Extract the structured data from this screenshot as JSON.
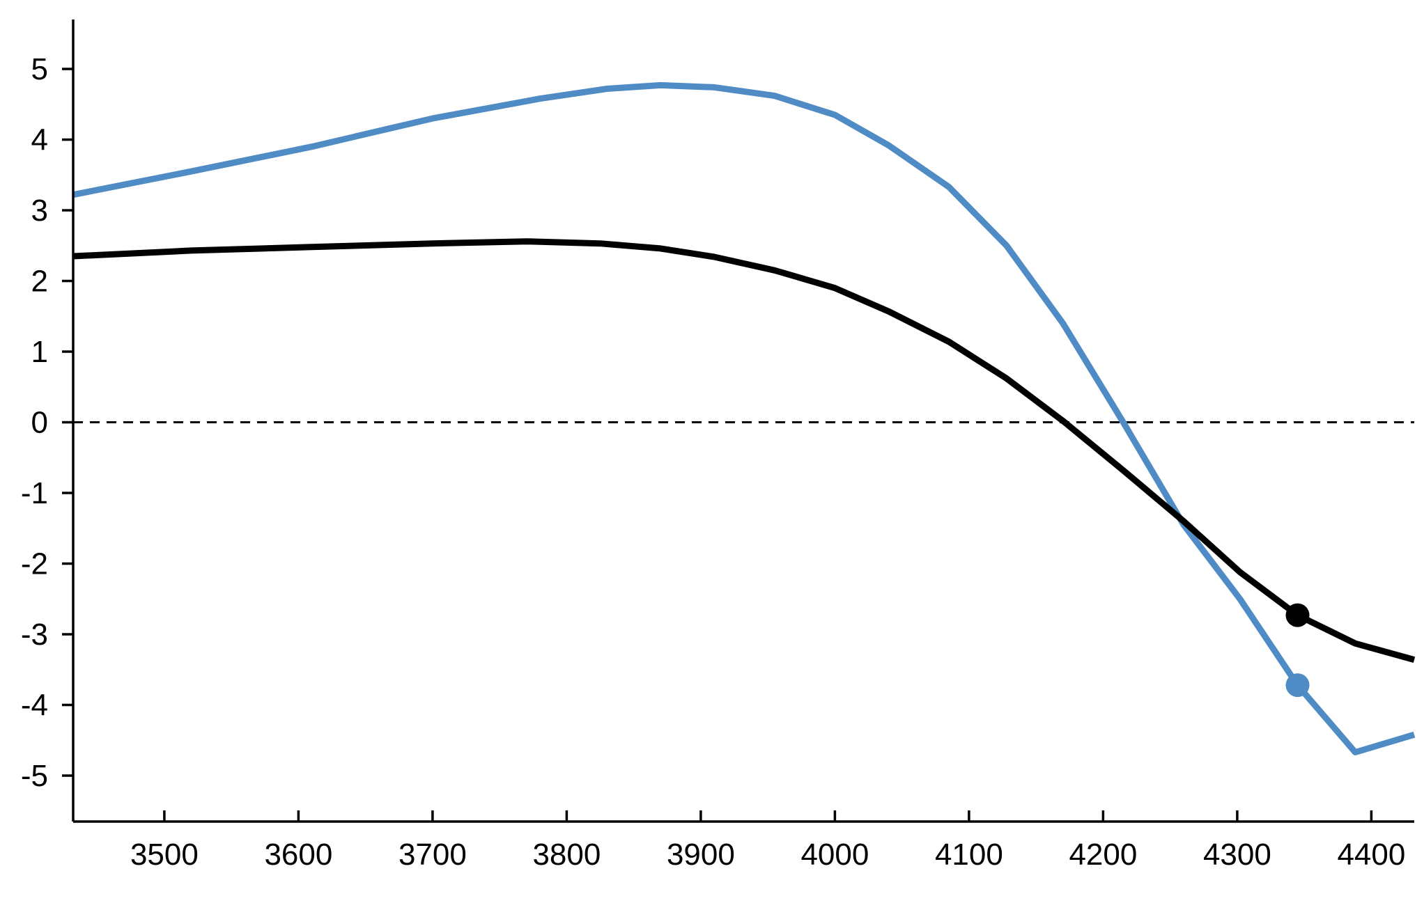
{
  "chart_data": {
    "type": "line",
    "title": "",
    "xlabel": "",
    "ylabel": "",
    "xlim": [
      3432,
      4432
    ],
    "ylim": [
      -5.65,
      5.7
    ],
    "x_ticks": [
      3500,
      3600,
      3700,
      3800,
      3900,
      4000,
      4100,
      4200,
      4300,
      4400
    ],
    "y_ticks": [
      -5,
      -4,
      -3,
      -2,
      -1,
      0,
      1,
      2,
      3,
      4,
      5
    ],
    "x_tick_labels": [
      "3500",
      "3600",
      "3700",
      "3800",
      "3900",
      "4000",
      "4100",
      "4200",
      "4300",
      "4400"
    ],
    "y_tick_labels": [
      "-5",
      "-4",
      "-3",
      "-2",
      "-1",
      "0",
      "1",
      "2",
      "3",
      "4",
      "5"
    ],
    "reference_line": {
      "y": 0,
      "style": "dashed"
    },
    "grid": false,
    "legend": "none",
    "series": [
      {
        "color": "#4f8bc4",
        "points": [
          [
            3432,
            3.22
          ],
          [
            3520,
            3.55
          ],
          [
            3610,
            3.9
          ],
          [
            3700,
            4.3
          ],
          [
            3780,
            4.58
          ],
          [
            3830,
            4.72
          ],
          [
            3870,
            4.77
          ],
          [
            3910,
            4.74
          ],
          [
            3955,
            4.62
          ],
          [
            4000,
            4.35
          ],
          [
            4040,
            3.92
          ],
          [
            4085,
            3.33
          ],
          [
            4128,
            2.5
          ],
          [
            4170,
            1.4
          ],
          [
            4215,
            0.0
          ],
          [
            4260,
            -1.45
          ],
          [
            4302,
            -2.5
          ],
          [
            4345,
            -3.72
          ],
          [
            4388,
            -4.67
          ],
          [
            4432,
            -4.42
          ]
        ],
        "markers": [
          [
            4345,
            -3.72
          ]
        ]
      },
      {
        "color": "#000000",
        "points": [
          [
            3432,
            2.35
          ],
          [
            3520,
            2.43
          ],
          [
            3610,
            2.48
          ],
          [
            3700,
            2.53
          ],
          [
            3770,
            2.56
          ],
          [
            3825,
            2.53
          ],
          [
            3870,
            2.46
          ],
          [
            3910,
            2.34
          ],
          [
            3955,
            2.15
          ],
          [
            4000,
            1.9
          ],
          [
            4040,
            1.57
          ],
          [
            4085,
            1.14
          ],
          [
            4128,
            0.62
          ],
          [
            4170,
            0.02
          ],
          [
            4215,
            -0.68
          ],
          [
            4260,
            -1.4
          ],
          [
            4302,
            -2.12
          ],
          [
            4345,
            -2.73
          ],
          [
            4388,
            -3.13
          ],
          [
            4432,
            -3.36
          ]
        ],
        "markers": [
          [
            4345,
            -2.73
          ]
        ]
      }
    ]
  }
}
